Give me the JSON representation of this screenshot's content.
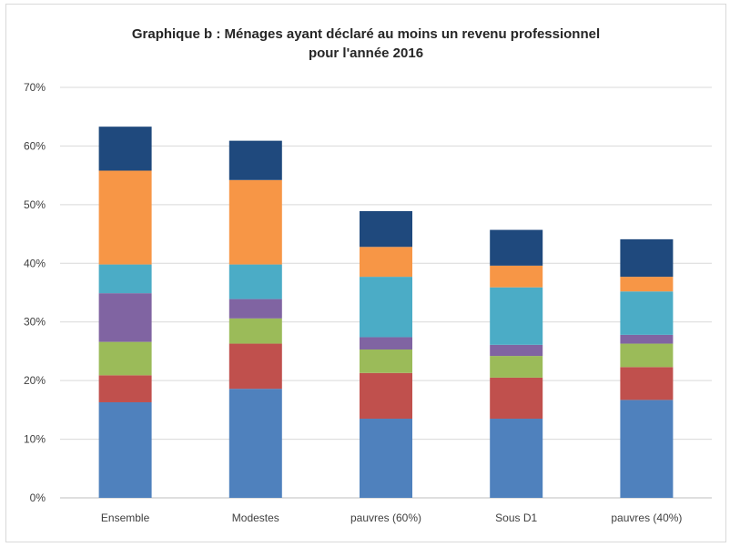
{
  "chart_data": {
    "type": "bar",
    "stacked": true,
    "title": "Graphique b : Ménages ayant déclaré au moins un revenu professionnel",
    "subtitle": "pour l'année 2016",
    "xlabel": "",
    "ylabel": "",
    "ylim": [
      0,
      70
    ],
    "yticks": [
      "0%",
      "10%",
      "20%",
      "30%",
      "40%",
      "50%",
      "60%",
      "70%"
    ],
    "grid": true,
    "categories": [
      "Ensemble",
      "Modestes",
      "pauvres (60%)",
      "Sous D1",
      "pauvres (40%)"
    ],
    "series": [
      {
        "color": "#4f81bd",
        "values": [
          16.3,
          18.6,
          13.5,
          13.5,
          16.7
        ]
      },
      {
        "color": "#c0504d",
        "values": [
          4.6,
          7.7,
          7.8,
          7.0,
          5.6
        ]
      },
      {
        "color": "#9bbb59",
        "values": [
          5.7,
          4.3,
          4.0,
          3.7,
          4.0
        ]
      },
      {
        "color": "#8064a2",
        "values": [
          8.3,
          3.3,
          2.1,
          1.9,
          1.5
        ]
      },
      {
        "color": "#4bacc6",
        "values": [
          4.9,
          5.9,
          10.3,
          9.8,
          7.4
        ]
      },
      {
        "color": "#f79646",
        "values": [
          16.0,
          14.4,
          5.1,
          3.7,
          2.5
        ]
      },
      {
        "color": "#1f497d",
        "values": [
          7.5,
          6.7,
          6.1,
          6.1,
          6.4
        ]
      }
    ]
  }
}
